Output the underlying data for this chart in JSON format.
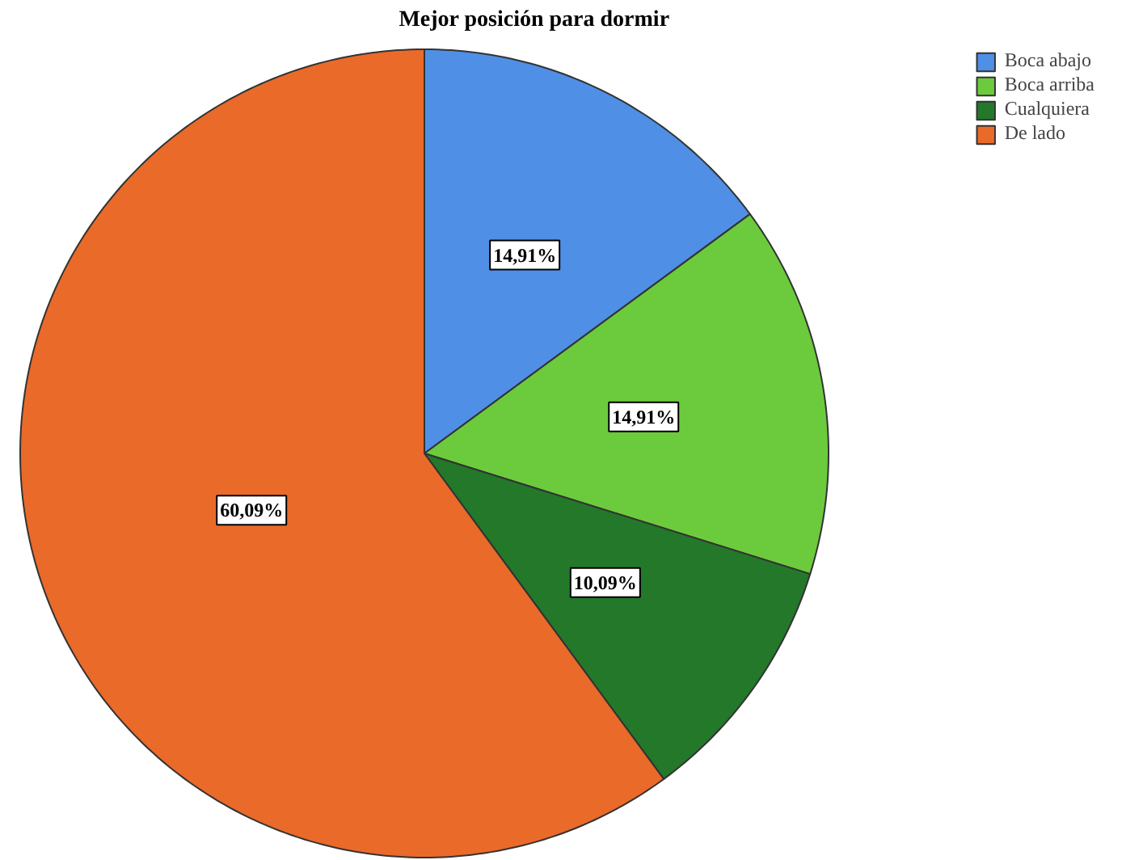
{
  "chart_data": {
    "type": "pie",
    "title": "Mejor posición para dormir",
    "categories": [
      "Boca abajo",
      "Boca arriba",
      "Cualquiera",
      "De lado"
    ],
    "values": [
      14.91,
      14.91,
      10.09,
      60.09
    ],
    "colors": [
      "#4f8fe6",
      "#6ccb3c",
      "#23782a",
      "#ea6a2a"
    ],
    "value_labels": [
      "14,91%",
      "14,91%",
      "10,09%",
      "60,09%"
    ],
    "legend": "top right"
  }
}
